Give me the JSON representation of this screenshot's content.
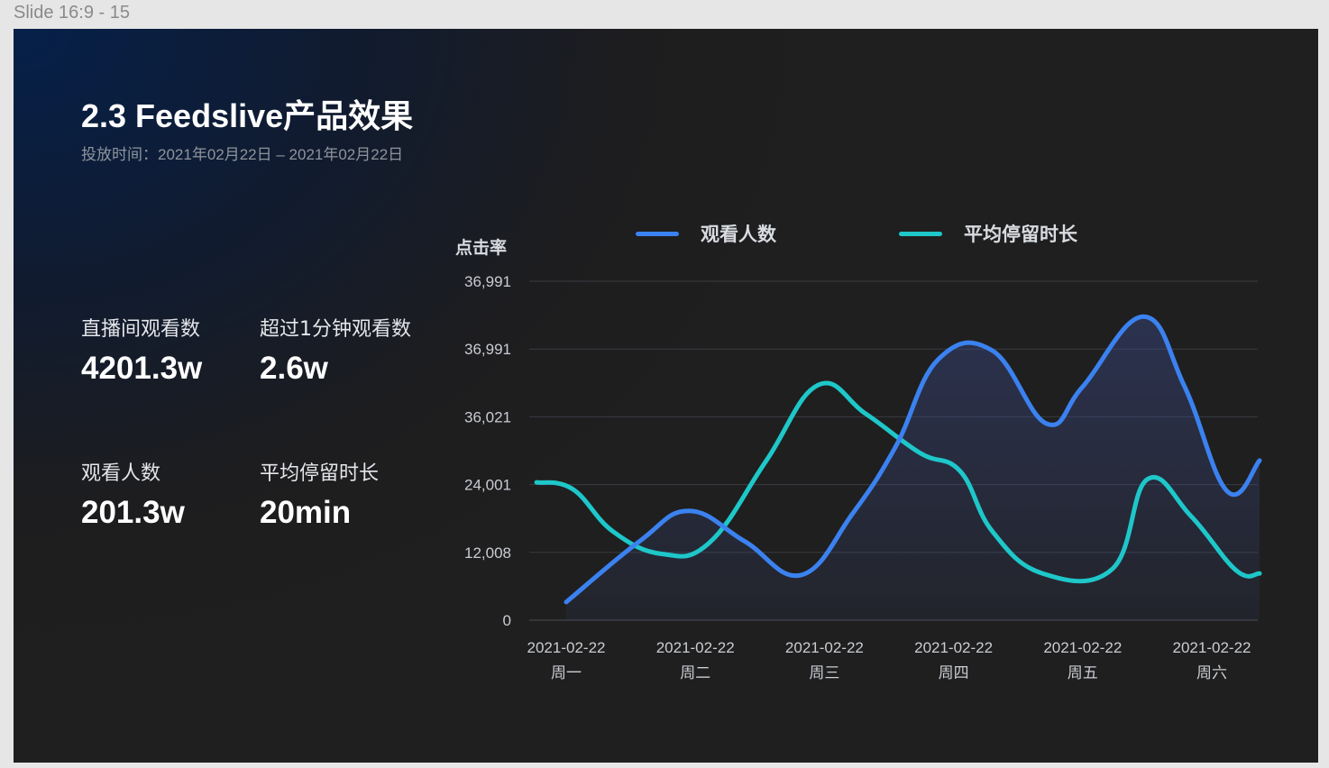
{
  "frame": {
    "label": "Slide 16:9 - 15"
  },
  "slide": {
    "title": "2.3 Feedslive产品效果",
    "subtitle": "投放时间：2021年02月22日 – 2021年02月22日",
    "stats": [
      {
        "label": "直播间观看数",
        "value": "4201.3w"
      },
      {
        "label": "超过1分钟观看数",
        "value": "2.6w"
      },
      {
        "label": "观看人数",
        "value": "201.3w"
      },
      {
        "label": "平均停留时长",
        "value": "20min"
      }
    ]
  },
  "chart_data": {
    "type": "area",
    "ylabel": "点击率",
    "ylim": [
      0,
      45000
    ],
    "y_ticks": [
      "0",
      "12,008",
      "24,001",
      "36,021",
      "36,991",
      "36,991"
    ],
    "categories": [
      {
        "date": "2021-02-22",
        "day": "周一"
      },
      {
        "date": "2021-02-22",
        "day": "周二"
      },
      {
        "date": "2021-02-22",
        "day": "周三"
      },
      {
        "date": "2021-02-22",
        "day": "周四"
      },
      {
        "date": "2021-02-22",
        "day": "周五"
      },
      {
        "date": "2021-02-22",
        "day": "周六"
      }
    ],
    "series": [
      {
        "name": "观看人数",
        "color": "#3b82f0",
        "fill": true,
        "x": [
          0.0,
          0.57,
          0.95,
          1.38,
          1.82,
          2.22,
          2.55,
          2.88,
          3.3,
          3.72,
          4.0,
          4.47,
          4.79,
          5.12,
          5.37
        ],
        "y": [
          2400,
          10500,
          14500,
          10500,
          6000,
          14200,
          23000,
          34600,
          35800,
          26100,
          31000,
          40300,
          31000,
          17100,
          21200
        ]
      },
      {
        "name": "平均停留时长",
        "color": "#1ec7c9",
        "fill": false,
        "x": [
          -0.23,
          0.05,
          0.36,
          0.74,
          1.11,
          1.55,
          1.95,
          2.32,
          2.74,
          3.05,
          3.3,
          3.69,
          4.23,
          4.5,
          4.84,
          5.19,
          5.37
        ],
        "y": [
          18300,
          17400,
          11800,
          8800,
          10300,
          21200,
          31200,
          27400,
          22200,
          19800,
          11800,
          6200,
          6800,
          18700,
          13800,
          6600,
          6200
        ]
      }
    ],
    "grid": true,
    "legend_position": "top"
  }
}
